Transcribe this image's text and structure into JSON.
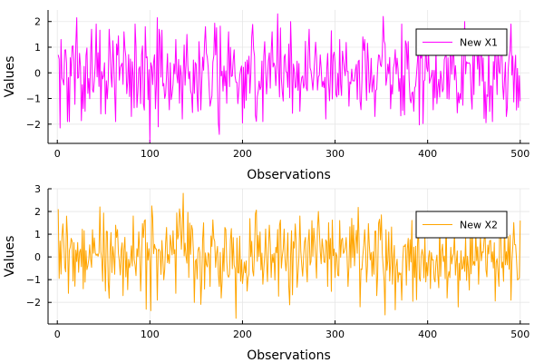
{
  "chart_data": [
    {
      "type": "line",
      "xlabel": "Observations",
      "ylabel": "Values",
      "xlim": [
        -10,
        510
      ],
      "ylim": [
        -2.75,
        2.45
      ],
      "xticks": [
        0,
        100,
        200,
        300,
        400,
        500
      ],
      "yticks": [
        -2,
        -1,
        0,
        1,
        2
      ],
      "grid": true,
      "legend_position": "top-right",
      "series": [
        {
          "name": "New X1",
          "color": "#ff00ff",
          "n_points": 500,
          "y_range": [
            -2.7,
            2.3
          ],
          "anchors": [
            [
              1,
              0.7
            ],
            [
              4,
              1.3
            ],
            [
              6,
              -0.3
            ],
            [
              9,
              0.9
            ],
            [
              11,
              -1.9
            ],
            [
              13,
              -1.9
            ],
            [
              20,
              1.1
            ],
            [
              30,
              -1.5
            ],
            [
              42,
              1.9
            ],
            [
              52,
              -1.6
            ],
            [
              56,
              1.7
            ],
            [
              63,
              -1.9
            ],
            [
              72,
              1.6
            ],
            [
              80,
              -1.7
            ],
            [
              84,
              1.9
            ],
            [
              90,
              -1.2
            ],
            [
              95,
              1.8
            ],
            [
              100,
              -2.7
            ],
            [
              106,
              -1.4
            ],
            [
              110,
              1.7
            ],
            [
              116,
              -1.0
            ],
            [
              128,
              1.3
            ],
            [
              135,
              -1.8
            ],
            [
              140,
              1.5
            ],
            [
              152,
              -1.5
            ],
            [
              160,
              1.8
            ],
            [
              165,
              -1.3
            ],
            [
              175,
              -2.4
            ],
            [
              185,
              1.6
            ],
            [
              195,
              -1.2
            ],
            [
              210,
              1.4
            ],
            [
              222,
              -1.9
            ],
            [
              232,
              1.6
            ],
            [
              238,
              2.3
            ],
            [
              244,
              -1.1
            ],
            [
              252,
              2.0
            ],
            [
              262,
              -1.5
            ],
            [
              272,
              1.7
            ],
            [
              290,
              -1.8
            ],
            [
              305,
              1.3
            ],
            [
              315,
              -1.3
            ],
            [
              330,
              1.4
            ],
            [
              343,
              -1.7
            ],
            [
              352,
              2.2
            ],
            [
              360,
              -1.4
            ],
            [
              372,
              1.9
            ],
            [
              385,
              -1.5
            ],
            [
              398,
              1.3
            ],
            [
              410,
              -1.2
            ],
            [
              425,
              1.7
            ],
            [
              440,
              2.0
            ],
            [
              447,
              -0.9
            ],
            [
              470,
              -1.9
            ],
            [
              480,
              1.4
            ],
            [
              485,
              -1.7
            ],
            [
              490,
              1.9
            ],
            [
              500,
              -1.1
            ]
          ]
        }
      ]
    },
    {
      "type": "line",
      "xlabel": "Observations",
      "ylabel": "Values",
      "xlim": [
        -10,
        510
      ],
      "ylim": [
        -2.95,
        3.0
      ],
      "xticks": [
        0,
        100,
        200,
        300,
        400,
        500
      ],
      "yticks": [
        -2,
        -1,
        0,
        1,
        2,
        3
      ],
      "grid": true,
      "legend_position": "top-right",
      "series": [
        {
          "name": "New X2",
          "color": "#ffa500",
          "n_points": 500,
          "y_range": [
            -2.7,
            2.8
          ],
          "anchors": [
            [
              1,
              2.1
            ],
            [
              3,
              0.7
            ],
            [
              12,
              -1.6
            ],
            [
              20,
              0.3
            ],
            [
              28,
              -1.4
            ],
            [
              38,
              1.2
            ],
            [
              46,
              2.2
            ],
            [
              52,
              -1.5
            ],
            [
              63,
              1.4
            ],
            [
              71,
              -1.7
            ],
            [
              82,
              1.8
            ],
            [
              90,
              -1.5
            ],
            [
              96,
              -2.3
            ],
            [
              108,
              -1.9
            ],
            [
              118,
              1.3
            ],
            [
              128,
              -1.6
            ],
            [
              136,
              2.8
            ],
            [
              148,
              -2.0
            ],
            [
              158,
              1.5
            ],
            [
              165,
              -1.3
            ],
            [
              175,
              -1.3
            ],
            [
              181,
              1.3
            ],
            [
              193,
              -2.7
            ],
            [
              205,
              -1.5
            ],
            [
              214,
              1.9
            ],
            [
              222,
              -1.2
            ],
            [
              229,
              1.4
            ],
            [
              240,
              1.4
            ],
            [
              250,
              -1.3
            ],
            [
              262,
              1.8
            ],
            [
              270,
              -1.1
            ],
            [
              282,
              2.0
            ],
            [
              292,
              -1.3
            ],
            [
              305,
              1.6
            ],
            [
              314,
              -1.3
            ],
            [
              320,
              1.4
            ],
            [
              332,
              1.2
            ],
            [
              345,
              -1.7
            ],
            [
              355,
              1.2
            ],
            [
              362,
              -1.2
            ],
            [
              372,
              -1.9
            ],
            [
              380,
              -0.6
            ],
            [
              390,
              1.5
            ],
            [
              398,
              -1.1
            ],
            [
              408,
              -1.1
            ],
            [
              420,
              2.0
            ],
            [
              430,
              -0.8
            ],
            [
              433,
              -2.2
            ],
            [
              448,
              1.4
            ],
            [
              455,
              -1.2
            ],
            [
              462,
              1.1
            ],
            [
              478,
              1.9
            ],
            [
              490,
              -1.9
            ],
            [
              500,
              1.6
            ]
          ]
        }
      ]
    }
  ]
}
